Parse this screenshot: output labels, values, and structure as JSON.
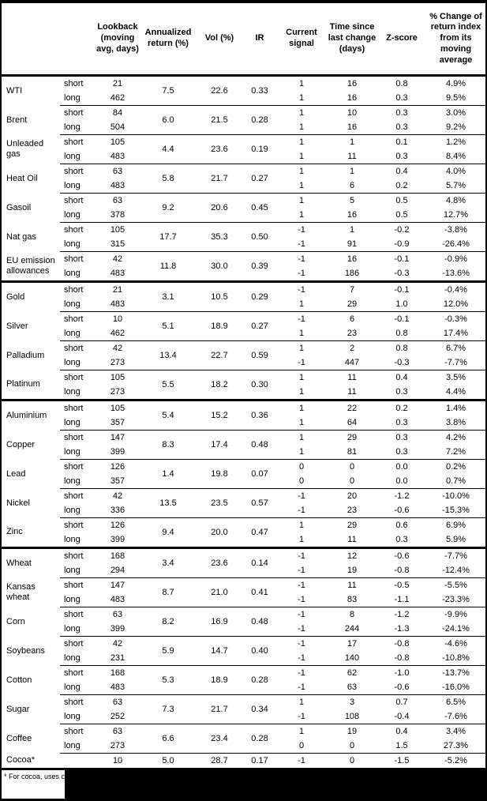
{
  "table": {
    "headers": [
      "",
      "",
      "Lookback (moving avg, days)",
      "Annualized return (%)",
      "Vol (%)",
      "IR",
      "Current signal",
      "Time since last change (days)",
      "Z-score",
      "% Change of return index from its moving average"
    ],
    "leg_labels": [
      "short",
      "long"
    ],
    "commodities": [
      {
        "name": "WTI",
        "annualized": "7.5",
        "vol": "22.6",
        "ir": "0.33",
        "short": {
          "lookback": "21",
          "signal": "1",
          "time": "16",
          "zscore": "0.8",
          "pct": "4.9%"
        },
        "long": {
          "lookback": "462",
          "signal": "1",
          "time": "16",
          "zscore": "0.3",
          "pct": "9.5%"
        }
      },
      {
        "name": "Brent",
        "annualized": "6.0",
        "vol": "21.5",
        "ir": "0.28",
        "short": {
          "lookback": "84",
          "signal": "1",
          "time": "10",
          "zscore": "0.3",
          "pct": "3.0%"
        },
        "long": {
          "lookback": "504",
          "signal": "1",
          "time": "16",
          "zscore": "0.3",
          "pct": "9.2%"
        }
      },
      {
        "name": "Unleaded gas",
        "annualized": "4.4",
        "vol": "23.6",
        "ir": "0.19",
        "short": {
          "lookback": "105",
          "signal": "1",
          "time": "1",
          "zscore": "0.1",
          "pct": "1.2%"
        },
        "long": {
          "lookback": "483",
          "signal": "1",
          "time": "11",
          "zscore": "0.3",
          "pct": "8.4%"
        }
      },
      {
        "name": "Heat Oil",
        "annualized": "5.8",
        "vol": "21.7",
        "ir": "0.27",
        "short": {
          "lookback": "63",
          "signal": "1",
          "time": "1",
          "zscore": "0.4",
          "pct": "4.0%"
        },
        "long": {
          "lookback": "483",
          "signal": "1",
          "time": "6",
          "zscore": "0.2",
          "pct": "5.7%"
        }
      },
      {
        "name": "Gasoil",
        "annualized": "9.2",
        "vol": "20.6",
        "ir": "0.45",
        "short": {
          "lookback": "63",
          "signal": "1",
          "time": "5",
          "zscore": "0.5",
          "pct": "4.8%"
        },
        "long": {
          "lookback": "378",
          "signal": "1",
          "time": "16",
          "zscore": "0.5",
          "pct": "12.7%"
        }
      },
      {
        "name": "Nat gas",
        "annualized": "17.7",
        "vol": "35.3",
        "ir": "0.50",
        "short": {
          "lookback": "105",
          "signal": "-1",
          "time": "1",
          "zscore": "-0.2",
          "pct": "-3.8%"
        },
        "long": {
          "lookback": "315",
          "signal": "-1",
          "time": "91",
          "zscore": "-0.9",
          "pct": "-26.4%"
        }
      },
      {
        "name": "EU emission allowances",
        "annualized": "11.8",
        "vol": "30.0",
        "ir": "0.39",
        "short": {
          "lookback": "42",
          "signal": "-1",
          "time": "16",
          "zscore": "-0.1",
          "pct": "-0.9%"
        },
        "long": {
          "lookback": "483",
          "signal": "-1",
          "time": "186",
          "zscore": "-0.3",
          "pct": "-13.6%"
        }
      },
      {
        "name": "Gold",
        "sector_start": true,
        "annualized": "3.1",
        "vol": "10.5",
        "ir": "0.29",
        "short": {
          "lookback": "21",
          "signal": "-1",
          "time": "7",
          "zscore": "-0.1",
          "pct": "-0.4%"
        },
        "long": {
          "lookback": "483",
          "signal": "1",
          "time": "29",
          "zscore": "1.0",
          "pct": "12.0%"
        }
      },
      {
        "name": "Silver",
        "annualized": "5.1",
        "vol": "18.9",
        "ir": "0.27",
        "short": {
          "lookback": "10",
          "signal": "-1",
          "time": "6",
          "zscore": "-0.1",
          "pct": "-0.3%"
        },
        "long": {
          "lookback": "462",
          "signal": "1",
          "time": "23",
          "zscore": "0.8",
          "pct": "17.4%"
        }
      },
      {
        "name": "Palladium",
        "annualized": "13.4",
        "vol": "22.7",
        "ir": "0.59",
        "short": {
          "lookback": "42",
          "signal": "1",
          "time": "2",
          "zscore": "0.8",
          "pct": "6.7%"
        },
        "long": {
          "lookback": "273",
          "signal": "-1",
          "time": "447",
          "zscore": "-0.3",
          "pct": "-7.7%"
        }
      },
      {
        "name": "Platinum",
        "annualized": "5.5",
        "vol": "18.2",
        "ir": "0.30",
        "short": {
          "lookback": "105",
          "signal": "1",
          "time": "11",
          "zscore": "0.4",
          "pct": "3.5%"
        },
        "long": {
          "lookback": "273",
          "signal": "1",
          "time": "11",
          "zscore": "0.3",
          "pct": "4.4%"
        }
      },
      {
        "name": "Aluminium",
        "sector_start": true,
        "annualized": "5.4",
        "vol": "15.2",
        "ir": "0.36",
        "short": {
          "lookback": "105",
          "signal": "1",
          "time": "22",
          "zscore": "0.2",
          "pct": "1.4%"
        },
        "long": {
          "lookback": "357",
          "signal": "1",
          "time": "64",
          "zscore": "0.3",
          "pct": "3.8%"
        }
      },
      {
        "name": "Copper",
        "annualized": "8.3",
        "vol": "17.4",
        "ir": "0.48",
        "short": {
          "lookback": "147",
          "signal": "1",
          "time": "29",
          "zscore": "0.3",
          "pct": "4.2%"
        },
        "long": {
          "lookback": "399",
          "signal": "1",
          "time": "81",
          "zscore": "0.3",
          "pct": "7.2%"
        }
      },
      {
        "name": "Lead",
        "annualized": "1.4",
        "vol": "19.8",
        "ir": "0.07",
        "short": {
          "lookback": "126",
          "signal": "0",
          "time": "0",
          "zscore": "0.0",
          "pct": "0.2%"
        },
        "long": {
          "lookback": "357",
          "signal": "0",
          "time": "0",
          "zscore": "0.0",
          "pct": "0.7%"
        }
      },
      {
        "name": "Nickel",
        "annualized": "13.5",
        "vol": "23.5",
        "ir": "0.57",
        "short": {
          "lookback": "42",
          "signal": "-1",
          "time": "20",
          "zscore": "-1.2",
          "pct": "-10.0%"
        },
        "long": {
          "lookback": "336",
          "signal": "-1",
          "time": "23",
          "zscore": "-0.6",
          "pct": "-15.3%"
        }
      },
      {
        "name": "Zinc",
        "annualized": "9.4",
        "vol": "20.0",
        "ir": "0.47",
        "short": {
          "lookback": "126",
          "signal": "1",
          "time": "29",
          "zscore": "0.6",
          "pct": "6.9%"
        },
        "long": {
          "lookback": "399",
          "signal": "1",
          "time": "11",
          "zscore": "0.3",
          "pct": "5.9%"
        }
      },
      {
        "name": "Wheat",
        "sector_start": true,
        "annualized": "3.4",
        "vol": "23.6",
        "ir": "0.14",
        "short": {
          "lookback": "168",
          "signal": "-1",
          "time": "12",
          "zscore": "-0.6",
          "pct": "-7.7%"
        },
        "long": {
          "lookback": "294",
          "signal": "-1",
          "time": "19",
          "zscore": "-0.8",
          "pct": "-12.4%"
        }
      },
      {
        "name": "Kansas wheat",
        "annualized": "8.7",
        "vol": "21.0",
        "ir": "0.41",
        "short": {
          "lookback": "147",
          "signal": "-1",
          "time": "11",
          "zscore": "-0.5",
          "pct": "-5.5%"
        },
        "long": {
          "lookback": "483",
          "signal": "-1",
          "time": "83",
          "zscore": "-1.1",
          "pct": "-23.3%"
        }
      },
      {
        "name": "Corn",
        "annualized": "8.2",
        "vol": "16.9",
        "ir": "0.48",
        "short": {
          "lookback": "63",
          "signal": "-1",
          "time": "8",
          "zscore": "-1.2",
          "pct": "-9.9%"
        },
        "long": {
          "lookback": "399",
          "signal": "-1",
          "time": "244",
          "zscore": "-1.3",
          "pct": "-24.1%"
        }
      },
      {
        "name": "Soybeans",
        "annualized": "5.9",
        "vol": "14.7",
        "ir": "0.40",
        "short": {
          "lookback": "42",
          "signal": "-1",
          "time": "17",
          "zscore": "-0.8",
          "pct": "-4.6%"
        },
        "long": {
          "lookback": "231",
          "signal": "-1",
          "time": "140",
          "zscore": "-0.8",
          "pct": "-10.8%"
        }
      },
      {
        "name": "Cotton",
        "annualized": "5.3",
        "vol": "18.9",
        "ir": "0.28",
        "short": {
          "lookback": "168",
          "signal": "-1",
          "time": "62",
          "zscore": "-1.0",
          "pct": "-13.7%"
        },
        "long": {
          "lookback": "483",
          "signal": "-1",
          "time": "63",
          "zscore": "-0.6",
          "pct": "-16.0%"
        }
      },
      {
        "name": "Sugar",
        "annualized": "7.3",
        "vol": "21.7",
        "ir": "0.34",
        "short": {
          "lookback": "63",
          "signal": "1",
          "time": "3",
          "zscore": "0.7",
          "pct": "6.5%"
        },
        "long": {
          "lookback": "252",
          "signal": "-1",
          "time": "108",
          "zscore": "-0.4",
          "pct": "-7.6%"
        }
      },
      {
        "name": "Coffee",
        "annualized": "6.6",
        "vol": "23.4",
        "ir": "0.28",
        "short": {
          "lookback": "63",
          "signal": "1",
          "time": "19",
          "zscore": "0.4",
          "pct": "3.4%"
        },
        "long": {
          "lookback": "273",
          "signal": "0",
          "time": "0",
          "zscore": "1.5",
          "pct": "27.3%"
        }
      },
      {
        "name": "Cocoa*",
        "annualized": "5.0",
        "vol": "28.7",
        "ir": "0.17",
        "single": {
          "lookback": "10",
          "signal": "-1",
          "time": "0",
          "zscore": "-1.5",
          "pct": "-5.2%"
        }
      }
    ]
  },
  "footnote": {
    "text": "* For cocoa, uses c"
  }
}
